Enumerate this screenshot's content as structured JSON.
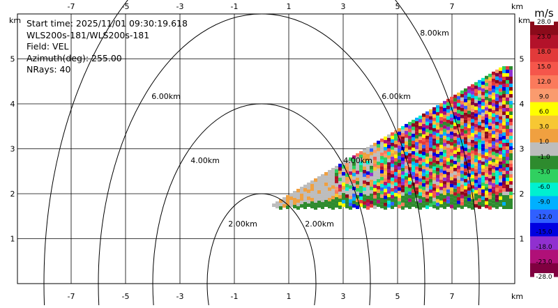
{
  "chart_data": {
    "type": "heatmap",
    "x_unit": "km",
    "y_unit": "km",
    "x_ticks": [
      -7,
      -5,
      -3,
      -1,
      1,
      3,
      5,
      7
    ],
    "y_ticks": [
      1,
      2,
      3,
      4,
      5
    ],
    "xlim": [
      -9,
      9.8
    ],
    "ylim": [
      0,
      6.05
    ],
    "grid": true,
    "info": {
      "start_time": "Start time: 2025/11/01 09:30:19.618",
      "instrument": "WLS200s-181/WLS200s-181",
      "field": "Field: VEL",
      "azimuth": "Azimuth(deg): 255.00",
      "nrays": "NRays: 40"
    },
    "range_rings": [
      {
        "label": "2.00km",
        "radius": 2
      },
      {
        "label": "4.00km",
        "radius": 4
      },
      {
        "label": "6.00km",
        "radius": 6
      },
      {
        "label": "8.00km",
        "radius": 8
      }
    ],
    "sector": {
      "apex": [
        0.6,
        1.8
      ],
      "far_range_km": 8.2,
      "elevation_min_deg": 0,
      "elevation_max_deg": 22.5
    },
    "colorbar": {
      "title": "m/s",
      "levels": [
        "28.0",
        "23.0",
        "18.0",
        "15.0",
        "12.0",
        "9.0",
        "6.0",
        "3.0",
        "1.0",
        "-1.0",
        "-3.0",
        "-6.0",
        "-9.0",
        "-12.0",
        "-15.0",
        "-18.0",
        "-23.0",
        "-28.0"
      ],
      "colors": [
        "#8b0a1a",
        "#b3122a",
        "#e23a3a",
        "#f5564b",
        "#fb7a5c",
        "#fa9b6e",
        "#ffff00",
        "#f7c733",
        "#f0a040",
        "#bdbdbd",
        "#2e8b2e",
        "#30d060",
        "#00f0d0",
        "#00b0ff",
        "#3060ff",
        "#0000e0",
        "#9030d0",
        "#b01078",
        "#800040"
      ]
    }
  }
}
